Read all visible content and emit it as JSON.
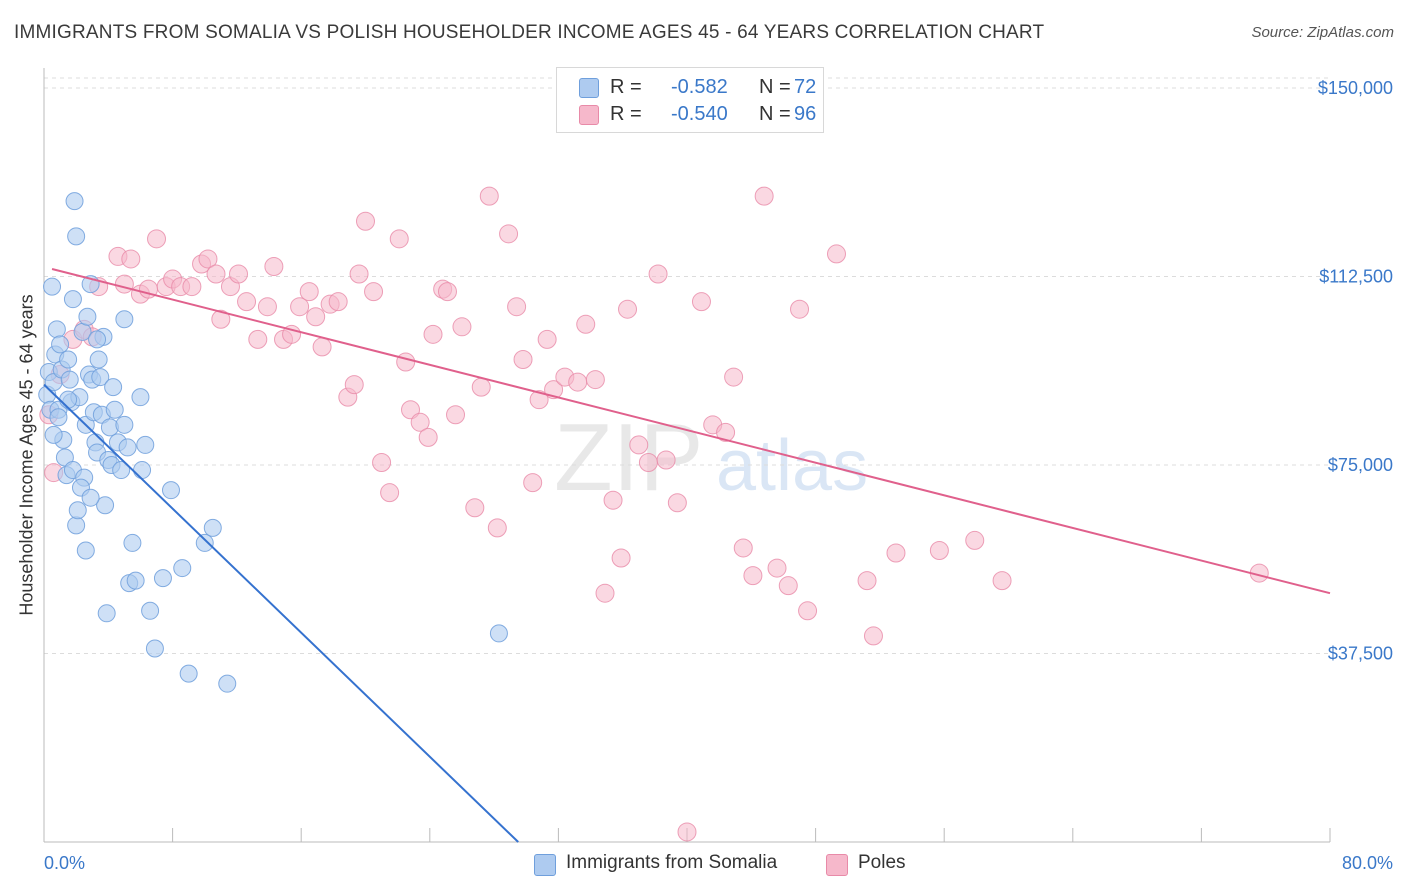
{
  "header": {
    "title": "IMMIGRANTS FROM SOMALIA VS POLISH HOUSEHOLDER INCOME AGES 45 - 64 YEARS CORRELATION CHART",
    "source": "Source: ZipAtlas.com"
  },
  "watermark": {
    "zip": "ZIP",
    "atlas": "atlas"
  },
  "stats_legend": {
    "rows": [
      {
        "r_label": "R =",
        "r_value": "-0.582",
        "n_label": "N =",
        "n_value": "72",
        "color": "#aecbf0"
      },
      {
        "r_label": "R =",
        "r_value": "-0.540",
        "n_label": "N =",
        "n_value": "96",
        "color": "#f6b8cb"
      }
    ]
  },
  "colors": {
    "somalia_fill": "#aecbf0",
    "somalia_stroke": "#6f9fdc",
    "somalia_line": "#3572cf",
    "poles_fill": "#f6b8cb",
    "poles_stroke": "#e88aa8",
    "poles_line": "#e0608c",
    "tick_label": "#3a78c9",
    "grid": "#dcdcdc"
  },
  "chart_data": {
    "type": "scatter",
    "title": "IMMIGRANTS FROM SOMALIA VS POLISH HOUSEHOLDER INCOME AGES 45 - 64 YEARS CORRELATION CHART",
    "xlabel": "",
    "ylabel": "Householder Income Ages 45 - 64 years",
    "xlim": [
      0,
      80
    ],
    "ylim": [
      0,
      152000
    ],
    "x_tick_labels": [
      "0.0%",
      "80.0%"
    ],
    "y_ticks": [
      37500,
      75000,
      112500,
      150000
    ],
    "y_tick_labels": [
      "$37,500",
      "$75,000",
      "$112,500",
      "$150,000"
    ],
    "grid": true,
    "legend_position": "bottom",
    "series": [
      {
        "name": "Immigrants from Somalia",
        "color": "#aecbf0",
        "trend": {
          "x": [
            0,
            29.5
          ],
          "y": [
            91000,
            0
          ]
        },
        "points": [
          [
            0.2,
            89000
          ],
          [
            0.3,
            93500
          ],
          [
            0.4,
            86000
          ],
          [
            0.5,
            110500
          ],
          [
            0.6,
            91500
          ],
          [
            0.7,
            97000
          ],
          [
            0.8,
            102000
          ],
          [
            0.9,
            86000
          ],
          [
            1.0,
            99000
          ],
          [
            1.1,
            94000
          ],
          [
            1.2,
            80000
          ],
          [
            1.3,
            76500
          ],
          [
            1.4,
            73000
          ],
          [
            1.5,
            96000
          ],
          [
            1.6,
            92000
          ],
          [
            1.7,
            87500
          ],
          [
            1.8,
            74000
          ],
          [
            1.9,
            127500
          ],
          [
            2.0,
            120500
          ],
          [
            2.0,
            63000
          ],
          [
            2.1,
            66000
          ],
          [
            2.2,
            88500
          ],
          [
            2.4,
            101500
          ],
          [
            2.5,
            72500
          ],
          [
            2.6,
            58000
          ],
          [
            2.6,
            83000
          ],
          [
            2.7,
            104500
          ],
          [
            2.8,
            93000
          ],
          [
            2.9,
            111000
          ],
          [
            3.0,
            92000
          ],
          [
            3.1,
            85500
          ],
          [
            3.2,
            79500
          ],
          [
            3.3,
            77500
          ],
          [
            3.4,
            96000
          ],
          [
            3.5,
            92500
          ],
          [
            3.6,
            85000
          ],
          [
            3.7,
            100500
          ],
          [
            3.8,
            67000
          ],
          [
            3.9,
            45500
          ],
          [
            4.0,
            76000
          ],
          [
            4.1,
            82500
          ],
          [
            4.2,
            75000
          ],
          [
            4.4,
            86000
          ],
          [
            4.6,
            79500
          ],
          [
            4.8,
            74000
          ],
          [
            5.0,
            104000
          ],
          [
            5.0,
            83000
          ],
          [
            5.2,
            78500
          ],
          [
            5.3,
            51500
          ],
          [
            5.5,
            59500
          ],
          [
            5.7,
            52000
          ],
          [
            6.0,
            88500
          ],
          [
            6.1,
            74000
          ],
          [
            6.6,
            46000
          ],
          [
            6.9,
            38500
          ],
          [
            7.4,
            52500
          ],
          [
            7.9,
            70000
          ],
          [
            8.6,
            54500
          ],
          [
            9.0,
            33500
          ],
          [
            10.0,
            59500
          ],
          [
            10.5,
            62500
          ],
          [
            11.4,
            31500
          ],
          [
            28.3,
            41500
          ],
          [
            1.5,
            88000
          ],
          [
            2.3,
            70500
          ],
          [
            0.9,
            84500
          ],
          [
            3.3,
            100000
          ],
          [
            1.8,
            108000
          ],
          [
            4.3,
            90500
          ],
          [
            2.9,
            68500
          ],
          [
            6.3,
            79000
          ],
          [
            0.6,
            81000
          ]
        ]
      },
      {
        "name": "Poles",
        "color": "#f6b8cb",
        "trend": {
          "x": [
            0.5,
            80
          ],
          "y": [
            114000,
            49500
          ]
        },
        "points": [
          [
            0.3,
            85000
          ],
          [
            0.6,
            73500
          ],
          [
            1.0,
            93000
          ],
          [
            1.8,
            100000
          ],
          [
            2.5,
            102000
          ],
          [
            3.0,
            100500
          ],
          [
            4.6,
            116500
          ],
          [
            5.0,
            111000
          ],
          [
            5.4,
            116000
          ],
          [
            6.0,
            109000
          ],
          [
            6.5,
            110000
          ],
          [
            7.0,
            120000
          ],
          [
            7.6,
            110500
          ],
          [
            8.0,
            112000
          ],
          [
            8.5,
            110500
          ],
          [
            9.2,
            110500
          ],
          [
            9.8,
            115000
          ],
          [
            10.2,
            116000
          ],
          [
            10.7,
            113000
          ],
          [
            11.0,
            104000
          ],
          [
            11.6,
            110500
          ],
          [
            12.1,
            113000
          ],
          [
            12.6,
            107500
          ],
          [
            13.3,
            100000
          ],
          [
            13.9,
            106500
          ],
          [
            14.3,
            114500
          ],
          [
            14.9,
            100000
          ],
          [
            15.4,
            101000
          ],
          [
            15.9,
            106500
          ],
          [
            16.5,
            109500
          ],
          [
            16.9,
            104500
          ],
          [
            17.3,
            98500
          ],
          [
            17.8,
            107000
          ],
          [
            18.3,
            107500
          ],
          [
            18.9,
            88500
          ],
          [
            19.3,
            91000
          ],
          [
            19.6,
            113000
          ],
          [
            20.0,
            123500
          ],
          [
            20.5,
            109500
          ],
          [
            21.0,
            75500
          ],
          [
            21.5,
            69500
          ],
          [
            22.1,
            120000
          ],
          [
            22.5,
            95500
          ],
          [
            22.8,
            86000
          ],
          [
            23.4,
            83500
          ],
          [
            23.9,
            80500
          ],
          [
            24.2,
            101000
          ],
          [
            24.8,
            110000
          ],
          [
            25.1,
            109500
          ],
          [
            25.6,
            85000
          ],
          [
            26.0,
            102500
          ],
          [
            26.8,
            66500
          ],
          [
            27.2,
            90500
          ],
          [
            27.7,
            128500
          ],
          [
            28.2,
            62500
          ],
          [
            28.9,
            121000
          ],
          [
            29.4,
            106500
          ],
          [
            29.8,
            96000
          ],
          [
            30.4,
            71500
          ],
          [
            30.8,
            88000
          ],
          [
            31.3,
            100000
          ],
          [
            31.7,
            90000
          ],
          [
            32.4,
            92500
          ],
          [
            33.2,
            91500
          ],
          [
            33.7,
            103000
          ],
          [
            34.3,
            92000
          ],
          [
            34.9,
            49500
          ],
          [
            35.4,
            68000
          ],
          [
            35.9,
            56500
          ],
          [
            36.3,
            106000
          ],
          [
            37.0,
            79000
          ],
          [
            37.6,
            75500
          ],
          [
            38.2,
            113000
          ],
          [
            38.7,
            76000
          ],
          [
            39.4,
            67500
          ],
          [
            40.0,
            2000
          ],
          [
            40.9,
            107500
          ],
          [
            41.6,
            83000
          ],
          [
            42.4,
            81500
          ],
          [
            42.9,
            92500
          ],
          [
            43.5,
            58500
          ],
          [
            44.1,
            53000
          ],
          [
            44.8,
            128500
          ],
          [
            45.6,
            54500
          ],
          [
            46.3,
            51000
          ],
          [
            47.0,
            106000
          ],
          [
            47.5,
            46000
          ],
          [
            49.3,
            117000
          ],
          [
            51.2,
            52000
          ],
          [
            51.6,
            41000
          ],
          [
            53.0,
            57500
          ],
          [
            55.7,
            58000
          ],
          [
            57.9,
            60000
          ],
          [
            59.6,
            52000
          ],
          [
            75.6,
            53500
          ],
          [
            3.4,
            110500
          ]
        ]
      }
    ]
  },
  "axis_labels": {
    "x_min": "0.0%",
    "x_max": "80.0%"
  },
  "bottom_legend": [
    {
      "label": "Immigrants from Somalia",
      "color": "#aecbf0"
    },
    {
      "label": "Poles",
      "color": "#f6b8cb"
    }
  ]
}
